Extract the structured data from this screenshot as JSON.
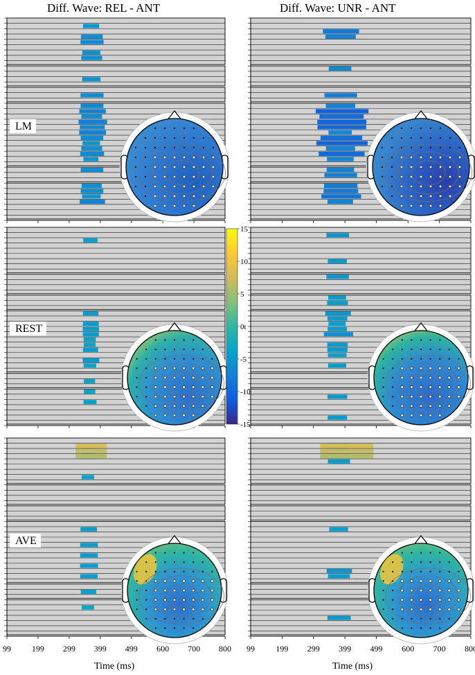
{
  "figure": {
    "columns": [
      "Diff. Wave: REL - ANT",
      "Diff. Wave: UNR - ANT"
    ],
    "rows": [
      "LM",
      "REST",
      "AVE"
    ]
  },
  "chart_data": {
    "type": "heatmap",
    "x_ticks": [
      "99",
      "199",
      "299",
      "399",
      "499",
      "600",
      "700",
      "800"
    ],
    "x_range": [
      99,
      800
    ],
    "xlabel": "Time (ms)",
    "colorbar": {
      "min": -15,
      "max": 15,
      "ticks": [
        "15",
        "10",
        "5",
        "0t",
        "-5",
        "-10",
        "-15"
      ],
      "colors": [
        "#352a87",
        "#0f5cdd",
        "#1481d6",
        "#06a4ca",
        "#2eb7a4",
        "#87bf77",
        "#d1bb59",
        "#fec832",
        "#f9fb0e"
      ]
    },
    "panels": [
      {
        "row": "LM",
        "column": "REL - ANT",
        "significant_window_ms": [
          330,
          420
        ],
        "mean_effect": -7
      },
      {
        "row": "LM",
        "column": "UNR - ANT",
        "significant_window_ms": [
          320,
          460
        ],
        "mean_effect": -9
      },
      {
        "row": "REST",
        "column": "REL - ANT",
        "significant_window_ms": [
          340,
          400
        ],
        "mean_effect": -5
      },
      {
        "row": "REST",
        "column": "UNR - ANT",
        "significant_window_ms": [
          330,
          430
        ],
        "mean_effect": -6
      },
      {
        "row": "AVE",
        "column": "REL - ANT",
        "significant_window_ms": [
          330,
          400
        ],
        "mean_effect": -5
      },
      {
        "row": "AVE",
        "column": "UNR - ANT",
        "significant_window_ms": [
          330,
          440
        ],
        "mean_effect": -6
      }
    ]
  }
}
